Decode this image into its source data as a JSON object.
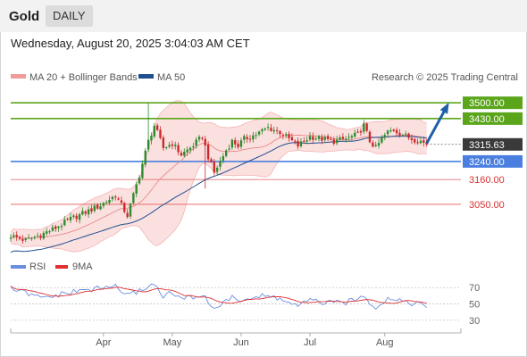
{
  "header": {
    "symbol": "Gold",
    "period": "DAILY"
  },
  "timestamp": "Wednesday, August 20, 2025 3:04:03 AM CET",
  "legend": {
    "bollinger": "MA 20 + Bollinger Bands",
    "ma50": "MA 50",
    "credit": "Research © 2025 Trading Central",
    "rsi": "RSI",
    "ma9": "9MA"
  },
  "colors": {
    "green": "#5aa51a",
    "blue": "#4a7fe0",
    "red": "#e05a5a",
    "bull": "#2e8b2e",
    "bear": "#cc2a2a",
    "ma50": "#1f4f8f",
    "band_fill": "#fbe0e0",
    "current": "#3a3a3a",
    "arrow": "#1f5fa8",
    "rsi_line": "#6b8fe0",
    "rsi_ma": "#e03030"
  },
  "chart_data": [
    {
      "type": "candlestick",
      "title": "Gold Daily",
      "x_ticks": [
        "Apr",
        "May",
        "Jun",
        "Jul",
        "Aug"
      ],
      "y_range": [
        2840,
        3560
      ],
      "current_price": 3315.63,
      "levels": [
        {
          "value": 3500.0,
          "label": "3500.00",
          "kind": "resistance"
        },
        {
          "value": 3430.0,
          "label": "3430.00",
          "kind": "resistance"
        },
        {
          "value": 3240.0,
          "label": "3240.00",
          "kind": "support"
        },
        {
          "value": 3160.0,
          "label": "3160.00",
          "kind": "support2"
        },
        {
          "value": 3050.0,
          "label": "3050.00",
          "kind": "support2"
        }
      ],
      "close_anchors": [
        [
          0,
          2910
        ],
        [
          5,
          2890
        ],
        [
          10,
          2915
        ],
        [
          15,
          2945
        ],
        [
          20,
          2985
        ],
        [
          25,
          3015
        ],
        [
          30,
          3045
        ],
        [
          35,
          3090
        ],
        [
          39,
          3000
        ],
        [
          43,
          3180
        ],
        [
          46,
          3330
        ],
        [
          48,
          3400
        ],
        [
          51,
          3300
        ],
        [
          54,
          3320
        ],
        [
          57,
          3270
        ],
        [
          60,
          3300
        ],
        [
          64,
          3350
        ],
        [
          66,
          3260
        ],
        [
          68,
          3190
        ],
        [
          70,
          3240
        ],
        [
          72,
          3290
        ],
        [
          74,
          3330
        ],
        [
          76,
          3310
        ],
        [
          78,
          3340
        ],
        [
          82,
          3360
        ],
        [
          86,
          3390
        ],
        [
          90,
          3370
        ],
        [
          94,
          3330
        ],
        [
          96,
          3310
        ],
        [
          98,
          3330
        ],
        [
          100,
          3350
        ],
        [
          104,
          3340
        ],
        [
          108,
          3330
        ],
        [
          112,
          3340
        ],
        [
          116,
          3360
        ],
        [
          118,
          3400
        ],
        [
          120,
          3330
        ],
        [
          122,
          3300
        ],
        [
          124,
          3340
        ],
        [
          126,
          3370
        ],
        [
          128,
          3380
        ],
        [
          131,
          3360
        ],
        [
          134,
          3340
        ],
        [
          137,
          3330
        ],
        [
          139,
          3315.63
        ]
      ],
      "forecast_arrow": {
        "from": [
          139,
          3320
        ],
        "to": [
          146,
          3490
        ]
      }
    },
    {
      "type": "line",
      "title": "RSI",
      "y_ticks": [
        70,
        50,
        30
      ],
      "rsi_anchors": [
        [
          0,
          69
        ],
        [
          5,
          63
        ],
        [
          10,
          57
        ],
        [
          15,
          60
        ],
        [
          20,
          64
        ],
        [
          25,
          67
        ],
        [
          30,
          69
        ],
        [
          35,
          72
        ],
        [
          39,
          60
        ],
        [
          43,
          66
        ],
        [
          46,
          72
        ],
        [
          48,
          74
        ],
        [
          51,
          60
        ],
        [
          54,
          63
        ],
        [
          57,
          56
        ],
        [
          60,
          58
        ],
        [
          64,
          61
        ],
        [
          66,
          52
        ],
        [
          68,
          45
        ],
        [
          70,
          49
        ],
        [
          72,
          54
        ],
        [
          74,
          57
        ],
        [
          76,
          54
        ],
        [
          78,
          56
        ],
        [
          82,
          58
        ],
        [
          86,
          60
        ],
        [
          90,
          56
        ],
        [
          94,
          50
        ],
        [
          96,
          47
        ],
        [
          98,
          51
        ],
        [
          100,
          54
        ],
        [
          104,
          52
        ],
        [
          108,
          51
        ],
        [
          112,
          52
        ],
        [
          116,
          55
        ],
        [
          118,
          62
        ],
        [
          120,
          52
        ],
        [
          122,
          46
        ],
        [
          124,
          52
        ],
        [
          126,
          56
        ],
        [
          128,
          57
        ],
        [
          131,
          54
        ],
        [
          134,
          51
        ],
        [
          137,
          49
        ],
        [
          139,
          47
        ]
      ]
    }
  ]
}
